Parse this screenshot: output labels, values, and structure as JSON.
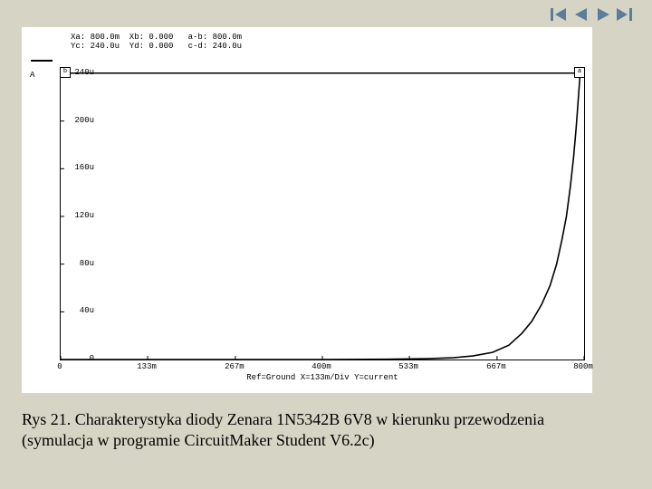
{
  "nav": {
    "first_icon": "⏮",
    "prev_icon": "◀",
    "next_icon": "▶",
    "last_icon": "⏭",
    "icon_color": "#5b7d9a"
  },
  "chart": {
    "type": "line",
    "coord_line1": "Xa: 800.0m  Xb: 0.000   a-b: 800.0m",
    "coord_line2": "Yc: 240.0u  Yd: 0.000   c-d: 240.0u",
    "legend_label": "A",
    "bottom_legend": "Ref=Ground  X=133m/Div Y=current",
    "background_color": "#ffffff",
    "axis_color": "#000000",
    "line_color": "#000000",
    "xlim": [
      0,
      800
    ],
    "ylim": [
      0,
      240
    ],
    "xticks": [
      {
        "pos": 0,
        "label": "0"
      },
      {
        "pos": 133,
        "label": "133m"
      },
      {
        "pos": 267,
        "label": "267m"
      },
      {
        "pos": 400,
        "label": "400m"
      },
      {
        "pos": 533,
        "label": "533m"
      },
      {
        "pos": 667,
        "label": "667m"
      },
      {
        "pos": 800,
        "label": "800m"
      }
    ],
    "yticks": [
      {
        "pos": 0,
        "label": "0"
      },
      {
        "pos": 40,
        "label": "40u"
      },
      {
        "pos": 80,
        "label": "80u"
      },
      {
        "pos": 120,
        "label": "120u"
      },
      {
        "pos": 160,
        "label": "160u"
      },
      {
        "pos": 200,
        "label": "200u"
      },
      {
        "pos": 240,
        "label": "240u"
      }
    ],
    "points": [
      [
        0,
        0
      ],
      [
        400,
        0
      ],
      [
        500,
        0.2
      ],
      [
        560,
        0.7
      ],
      [
        600,
        1.5
      ],
      [
        630,
        3
      ],
      [
        660,
        6
      ],
      [
        685,
        12
      ],
      [
        705,
        22
      ],
      [
        720,
        32
      ],
      [
        735,
        46
      ],
      [
        748,
        62
      ],
      [
        758,
        80
      ],
      [
        766,
        100
      ],
      [
        773,
        120
      ],
      [
        779,
        145
      ],
      [
        784,
        170
      ],
      [
        788,
        195
      ],
      [
        792,
        225
      ],
      [
        794,
        240
      ]
    ],
    "markers": {
      "a": {
        "x": 800,
        "y": 240,
        "glyph": "a"
      },
      "b": {
        "x": 0,
        "y": 240,
        "glyph": "b"
      }
    }
  },
  "caption": {
    "line1": "Rys 21.    Charakterystyka diody Zenara 1N5342B 6V8 w kierunku przewodzenia",
    "line2": "(symulacja w programie CircuitMaker Student V6.2c)"
  }
}
